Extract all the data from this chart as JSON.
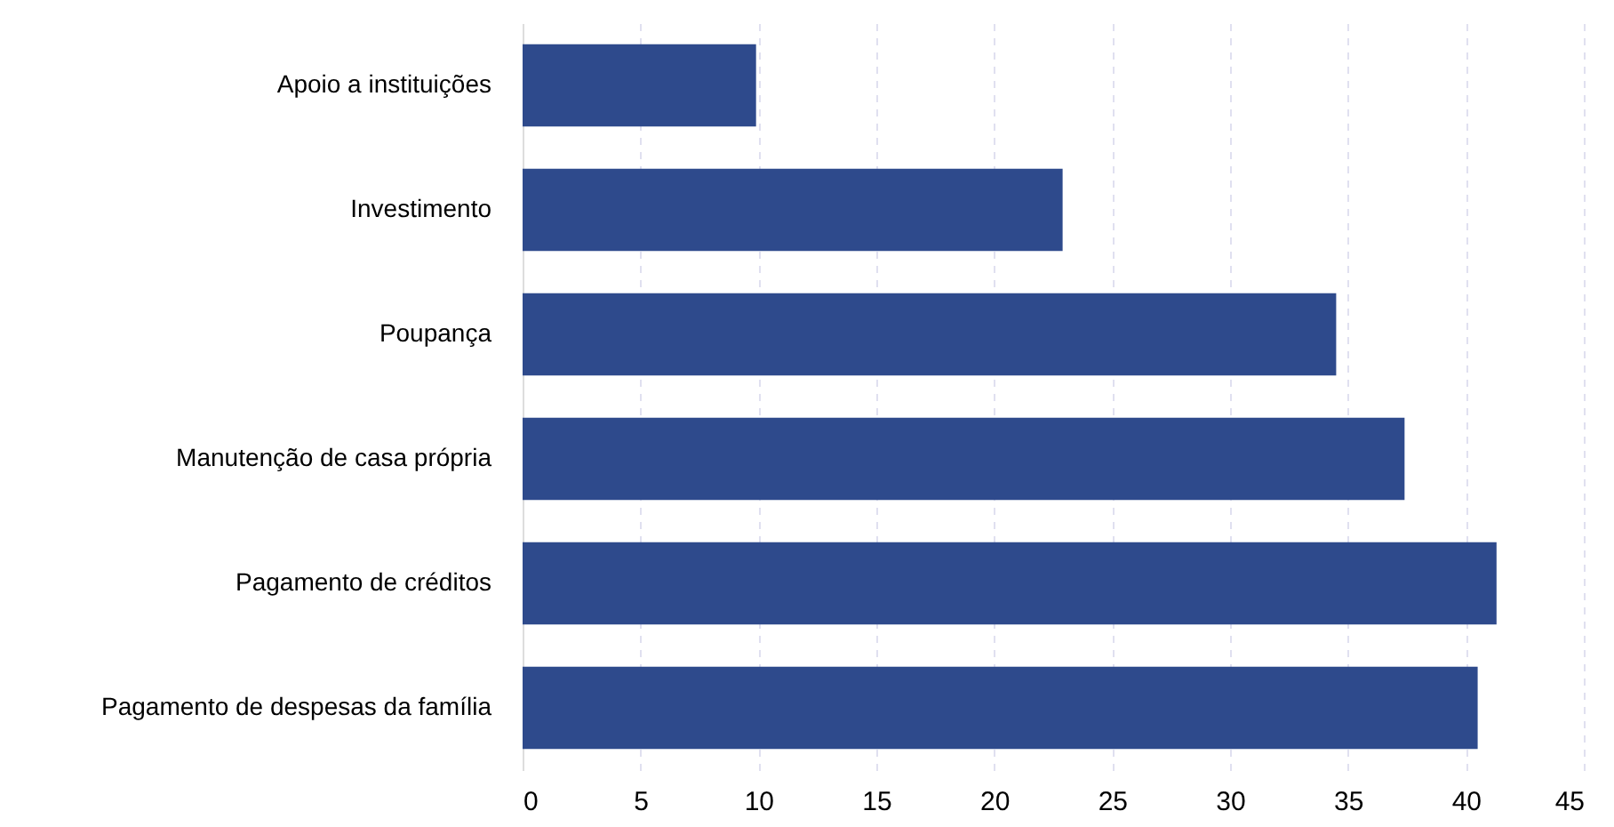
{
  "chart_data": {
    "type": "bar",
    "orientation": "horizontal",
    "categories": [
      "Apoio a instituições",
      "Investimento",
      "Poupança",
      "Manutenção de casa própria",
      "Pagamento de créditos",
      "Pagamento de despesas da família"
    ],
    "values": [
      9.9,
      22.9,
      34.5,
      37.4,
      41.3,
      40.5
    ],
    "color": "#2e4a8c",
    "xlim": [
      0,
      45
    ],
    "xticks": [
      0,
      5,
      10,
      15,
      20,
      25,
      30,
      35,
      40,
      45
    ],
    "grid": "x"
  }
}
